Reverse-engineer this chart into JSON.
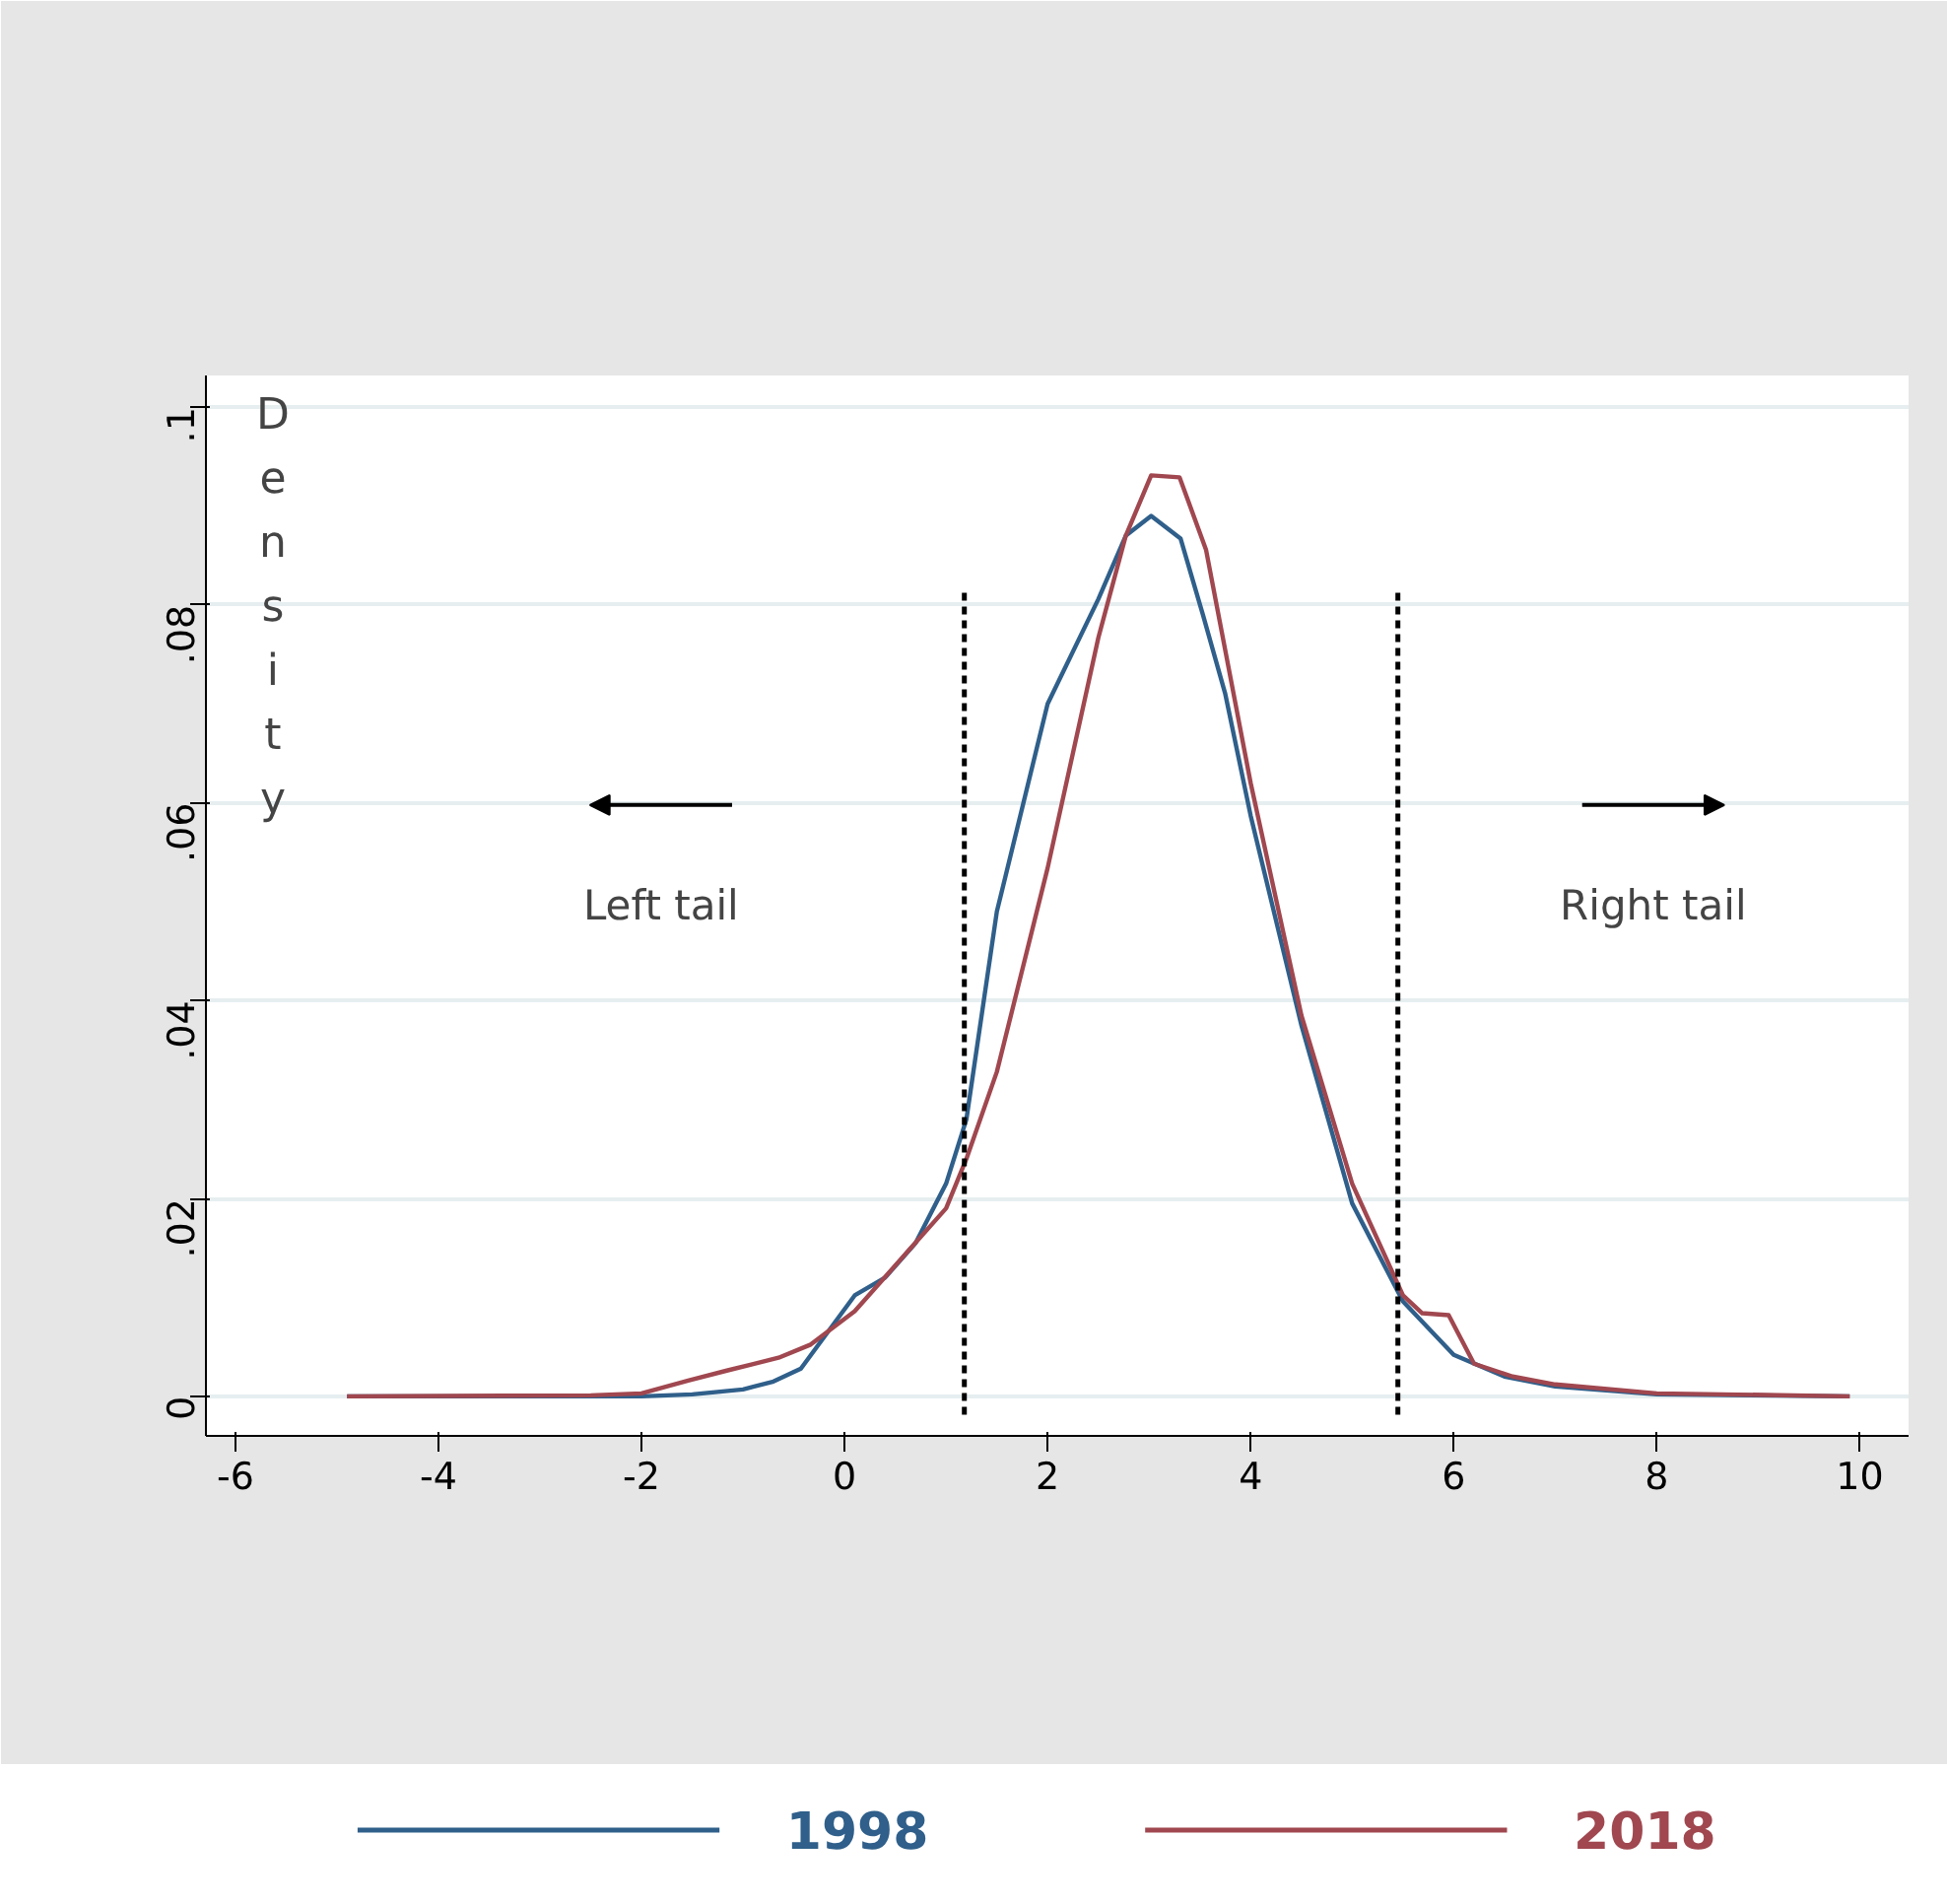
{
  "chart_data": {
    "type": "line",
    "ylabel": "Density",
    "xlim": [
      -6.29,
      10.48
    ],
    "ylim": [
      -0.004,
      0.1032
    ],
    "xticks": [
      -6,
      -4,
      -2,
      0,
      2,
      4,
      6,
      8,
      10
    ],
    "yticks": [
      0,
      {
        "value": 0.02,
        "label": ".02"
      },
      {
        "value": 0.04,
        "label": ".04"
      },
      {
        "value": 0.06,
        "label": ".06"
      },
      {
        "value": 0.08,
        "label": ".08"
      },
      {
        "value": 0.1,
        "label": ".1"
      }
    ],
    "grid": "y",
    "legend": "bottom",
    "line_style": "solid",
    "series": [
      {
        "name": "1998",
        "color": "#2f5f8a",
        "x": [
          -4.9,
          -2,
          -1.5,
          -1,
          -0.7,
          -0.43,
          0.1,
          0.4,
          0.7,
          1.0,
          1.2,
          1.5,
          2.0,
          2.5,
          2.77,
          3.02,
          3.31,
          3.53,
          3.75,
          4.0,
          4.5,
          5.0,
          5.5,
          6.0,
          6.5,
          7.0,
          8.0,
          9.9
        ],
        "values": [
          0,
          0,
          0.0002,
          0.0007,
          0.0015,
          0.0028,
          0.0102,
          0.012,
          0.0155,
          0.0215,
          0.028,
          0.049,
          0.07,
          0.0806,
          0.087,
          0.089,
          0.0867,
          0.079,
          0.071,
          0.0587,
          0.0375,
          0.0195,
          0.0096,
          0.0042,
          0.002,
          0.001,
          0.0002,
          0
        ]
      },
      {
        "name": "2018",
        "color": "#a0474f",
        "x": [
          -4.9,
          -2.5,
          -2,
          -1.54,
          -1.16,
          -0.65,
          -0.34,
          0.1,
          0.61,
          1.0,
          1.2,
          1.5,
          2.0,
          2.5,
          2.77,
          3.02,
          3.3,
          3.56,
          4.0,
          4.5,
          5.0,
          5.5,
          5.69,
          5.95,
          6.2,
          6.58,
          7.0,
          8.0,
          9.9
        ],
        "values": [
          0,
          0.0001,
          0.0003,
          0.0016,
          0.0026,
          0.0039,
          0.0052,
          0.0086,
          0.0145,
          0.019,
          0.024,
          0.0328,
          0.0534,
          0.0767,
          0.087,
          0.0931,
          0.0929,
          0.0856,
          0.062,
          0.0385,
          0.0215,
          0.0102,
          0.0084,
          0.0082,
          0.0033,
          0.002,
          0.0012,
          0.0003,
          0
        ]
      }
    ],
    "ref_lines": [
      {
        "axis": "x",
        "value": 1.18,
        "color": "#000000",
        "line_style": "dashed"
      },
      {
        "axis": "x",
        "value": 5.45,
        "color": "#000000",
        "line_style": "dashed"
      }
    ],
    "annotations": [
      "Left tail",
      "Right tail"
    ]
  }
}
